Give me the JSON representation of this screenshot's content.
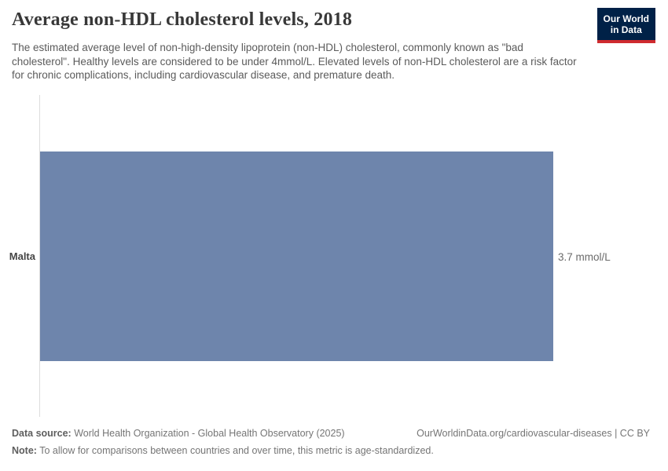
{
  "header": {
    "title": "Average non-HDL cholesterol levels, 2018",
    "subtitle": "The estimated average level of non-high-density lipoprotein (non-HDL) cholesterol, commonly known as \"bad cholesterol\". Healthy levels are considered to be under 4mmol/L. Elevated levels of non-HDL cholesterol are a risk factor for chronic complications, including cardiovascular disease, and premature death.",
    "logo": {
      "line1": "Our World",
      "line2": "in Data",
      "bg_color": "#002147",
      "accent_color": "#cf2b2f"
    }
  },
  "chart_data": {
    "type": "bar",
    "orientation": "horizontal",
    "title": "Average non-HDL cholesterol levels, 2018",
    "categories": [
      "Malta"
    ],
    "values": [
      3.7
    ],
    "unit": "mmol/L",
    "value_labels": [
      "3.7 mmol/L"
    ],
    "xlim": [
      0,
      3.7
    ],
    "grid": false,
    "legend": "none",
    "bar_color": "#6e85ac",
    "axis_line_color": "#dcdcdc"
  },
  "footer": {
    "data_source_label": "Data source:",
    "data_source_text": " World Health Organization - Global Health Observatory (2025)",
    "url_text": "OurWorldinData.org/cardiovascular-diseases | CC BY",
    "note_label": "Note:",
    "note_text": " To allow for comparisons between countries and over time, this metric is age-standardized."
  }
}
